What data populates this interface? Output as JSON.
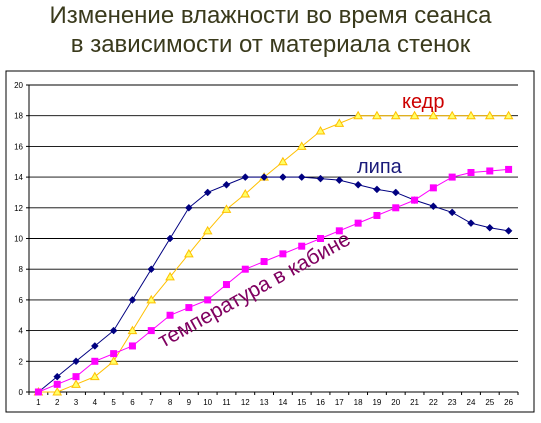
{
  "title_line1": "Изменение влажности во время сеанса",
  "title_line2": "в зависимости от материала стенок",
  "chart_data": {
    "type": "line",
    "x": [
      1,
      2,
      3,
      4,
      5,
      6,
      7,
      8,
      9,
      10,
      11,
      12,
      13,
      14,
      15,
      16,
      17,
      18,
      19,
      20,
      21,
      22,
      23,
      24,
      25,
      26
    ],
    "ylim": [
      0,
      20
    ],
    "yticks": [
      0,
      2,
      4,
      6,
      8,
      10,
      12,
      14,
      16,
      18,
      20
    ],
    "grid": true,
    "series": [
      {
        "name": "кедр",
        "color": "#ffc000",
        "marker": "triangle",
        "values": [
          0,
          0,
          0.5,
          1,
          2,
          4,
          6,
          7.5,
          9,
          10.5,
          11.9,
          12.9,
          14,
          15,
          16,
          17,
          17.5,
          18,
          18,
          18,
          18,
          18,
          18,
          18,
          18,
          18
        ]
      },
      {
        "name": "липа",
        "color": "#000080",
        "marker": "diamond",
        "values": [
          0,
          1,
          2,
          3,
          4,
          6,
          8,
          10,
          12,
          13,
          13.5,
          14,
          14,
          14,
          14,
          13.9,
          13.8,
          13.5,
          13.2,
          13,
          12.5,
          12.1,
          11.7,
          11,
          10.7,
          10.5
        ]
      },
      {
        "name": "температура в кабине",
        "color": "#ff00ff",
        "marker": "square",
        "values": [
          0,
          0.5,
          1,
          2,
          2.5,
          3,
          4,
          5,
          5.5,
          6,
          7,
          8,
          8.5,
          9,
          9.5,
          10,
          10.5,
          11,
          11.5,
          12,
          12.5,
          13.3,
          14,
          14.3,
          14.4,
          14.5
        ]
      }
    ],
    "annotations": [
      {
        "text": "кедр",
        "color": "#cc0000"
      },
      {
        "text": "липа",
        "color": "#1a1a7a"
      },
      {
        "text": "температура в кабине",
        "color": "#800060"
      }
    ]
  }
}
